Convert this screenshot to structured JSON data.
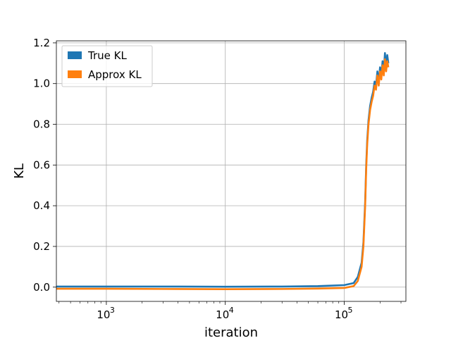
{
  "chart_data": {
    "type": "line",
    "title": "",
    "xlabel": "iteration",
    "ylabel": "KL",
    "xscale": "log",
    "xlim": [
      380,
      330000
    ],
    "ylim": [
      -0.07,
      1.21
    ],
    "grid": true,
    "legend_position": "top-left",
    "x_ticks": [
      {
        "value": 1000,
        "base": "10",
        "exp": "3"
      },
      {
        "value": 10000,
        "base": "10",
        "exp": "4"
      },
      {
        "value": 100000,
        "base": "10",
        "exp": "5"
      }
    ],
    "y_ticks": [
      {
        "value": 0.0,
        "label": "0.0"
      },
      {
        "value": 0.2,
        "label": "0.2"
      },
      {
        "value": 0.4,
        "label": "0.4"
      },
      {
        "value": 0.6,
        "label": "0.6"
      },
      {
        "value": 0.8,
        "label": "0.8"
      },
      {
        "value": 1.0,
        "label": "1.0"
      },
      {
        "value": 1.2,
        "label": "1.2"
      }
    ],
    "series": [
      {
        "name": "True KL",
        "color": "#1f77b4",
        "x": [
          380,
          1000,
          3000,
          10000,
          30000,
          60000,
          100000,
          120000,
          130000,
          140000,
          145000,
          150000,
          153000,
          156000,
          160000,
          165000,
          170000,
          175000,
          180000,
          185000,
          190000,
          195000,
          200000,
          205000,
          210000,
          215000,
          220000,
          225000,
          230000,
          235000
        ],
        "y": [
          0.003,
          0.003,
          0.003,
          0.002,
          0.003,
          0.005,
          0.01,
          0.02,
          0.05,
          0.12,
          0.22,
          0.42,
          0.6,
          0.72,
          0.82,
          0.89,
          0.93,
          0.96,
          1.01,
          0.99,
          1.06,
          1.01,
          1.08,
          1.04,
          1.11,
          1.06,
          1.15,
          1.08,
          1.14,
          1.1
        ]
      },
      {
        "name": "Approx KL",
        "color": "#ff7f0e",
        "x": [
          380,
          1000,
          3000,
          10000,
          30000,
          60000,
          100000,
          120000,
          130000,
          140000,
          145000,
          150000,
          153000,
          156000,
          160000,
          165000,
          170000,
          175000,
          180000,
          185000,
          190000,
          195000,
          200000,
          205000,
          210000,
          215000,
          220000,
          225000,
          230000,
          235000
        ],
        "y": [
          -0.008,
          -0.008,
          -0.009,
          -0.01,
          -0.009,
          -0.007,
          -0.004,
          0.005,
          0.03,
          0.1,
          0.2,
          0.4,
          0.58,
          0.7,
          0.8,
          0.87,
          0.91,
          0.94,
          0.99,
          0.97,
          1.04,
          0.99,
          1.06,
          1.02,
          1.09,
          1.04,
          1.12,
          1.06,
          1.11,
          1.08
        ]
      }
    ]
  }
}
